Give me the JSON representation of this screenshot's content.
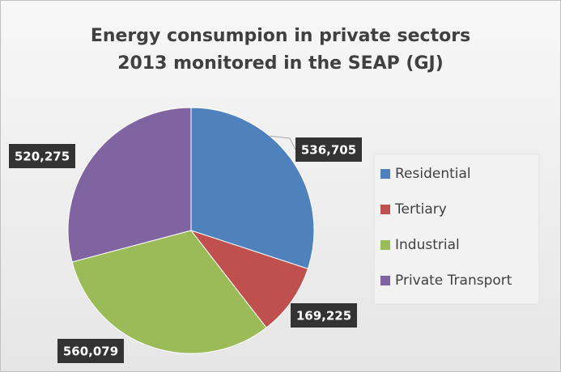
{
  "chart_data": {
    "type": "pie",
    "title": "Energy consumpion in private sectors 2013 monitored in the SEAP (GJ)",
    "categories": [
      "Residential",
      "Tertiary",
      "Industrial",
      "Private Transport"
    ],
    "values": [
      536705,
      169225,
      560079,
      520275
    ],
    "value_labels": [
      "536,705",
      "169,225",
      "560,079",
      "520,275"
    ],
    "colors": [
      "#4f81bd",
      "#c0504d",
      "#9bbb59",
      "#8064a2"
    ],
    "legend": "right"
  }
}
